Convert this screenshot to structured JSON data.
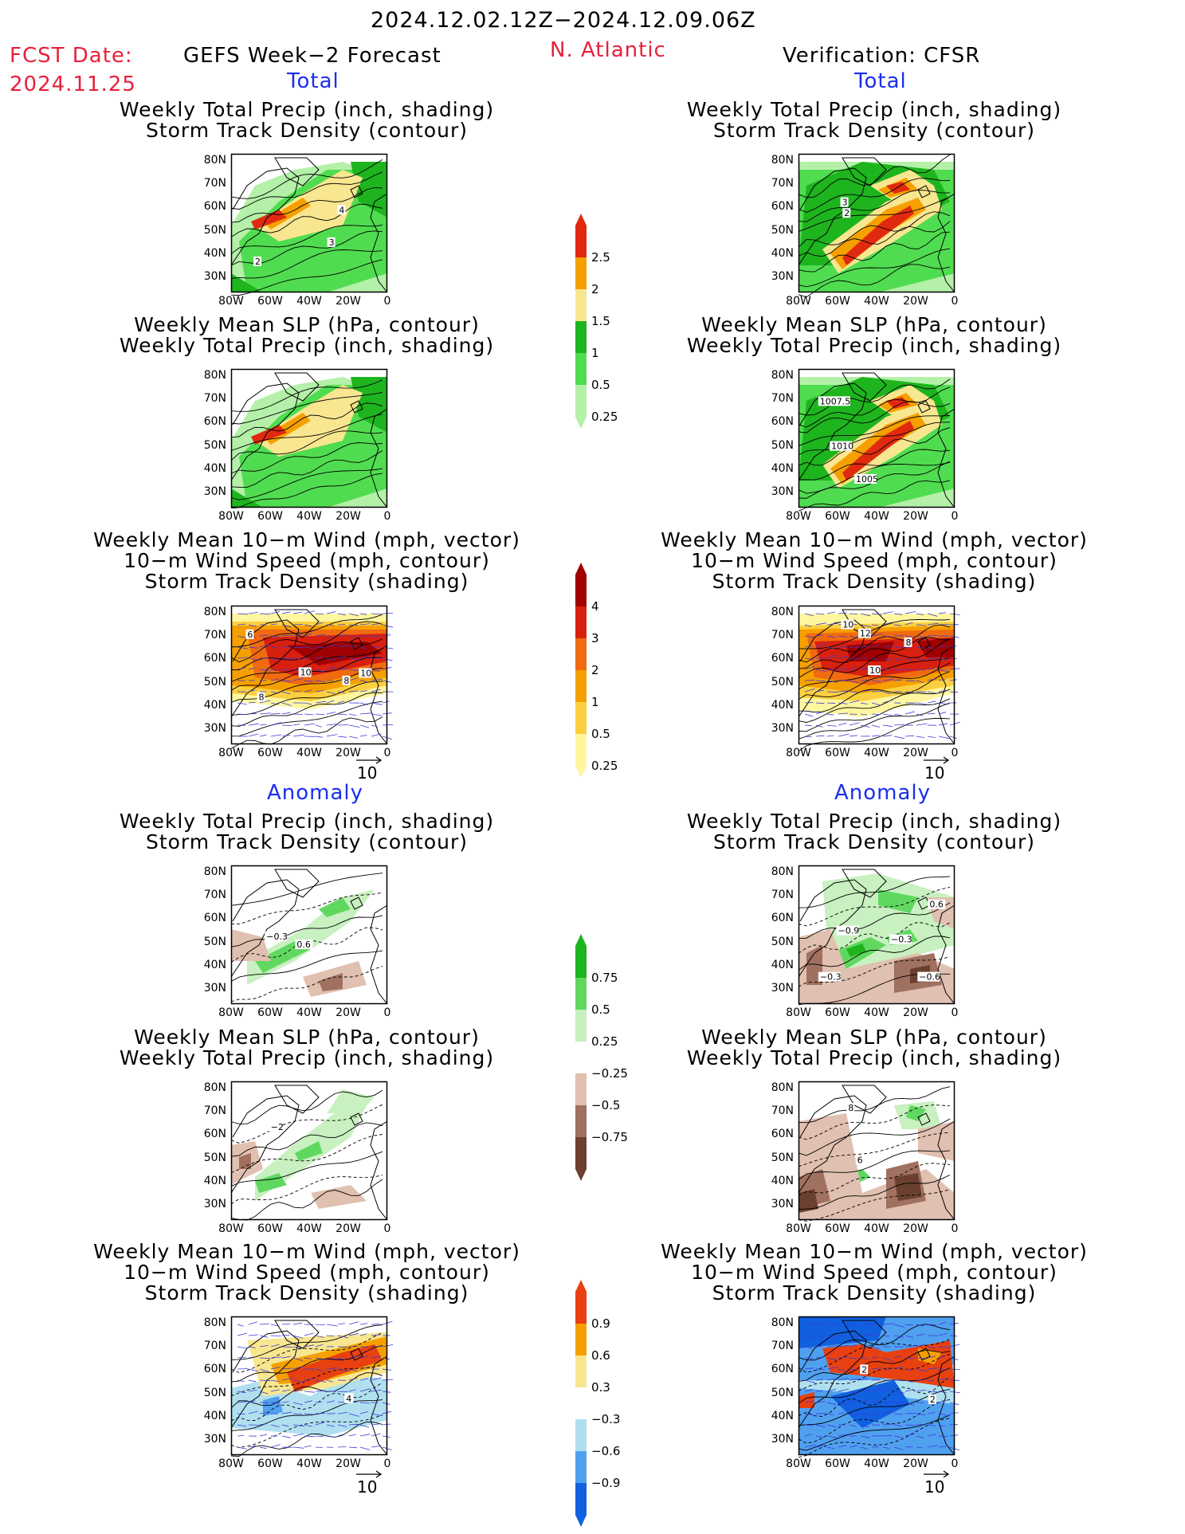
{
  "header": {
    "period": "2024.12.02.12Z−2024.12.09.06Z",
    "fcst_label": "FCST Date:",
    "fcst_date": "2024.11.25",
    "left_title": "GEFS Week−2 Forecast",
    "region": "N. Atlantic",
    "right_title": "Verification: CFSR"
  },
  "sections": {
    "total": "Total",
    "anomaly": "Anomaly"
  },
  "panel_titles": {
    "precip_track": [
      "Weekly Total Precip (inch, shading)",
      "Storm Track Density (contour)"
    ],
    "slp_precip": [
      "Weekly Mean SLP (hPa, contour)",
      "Weekly Total Precip (inch, shading)"
    ],
    "wind_track": [
      "Weekly Mean 10−m Wind (mph, vector)",
      "10−m Wind Speed (mph, contour)",
      "Storm Track Density (shading)"
    ]
  },
  "axes": {
    "lat_ticks": [
      "80N",
      "70N",
      "60N",
      "50N",
      "40N",
      "30N"
    ],
    "lon_ticks": [
      "80W",
      "60W",
      "40W",
      "20W",
      "0"
    ]
  },
  "vector_ref": "10",
  "colorbars": {
    "precip_total": {
      "levels": [
        "0.25",
        "0.5",
        "1",
        "1.5",
        "2",
        "2.5"
      ],
      "colors": [
        "#b4f0a8",
        "#50dc50",
        "#1eb41e",
        "#f8e690",
        "#f5a000",
        "#e02a10"
      ]
    },
    "track_total": {
      "levels": [
        "0.25",
        "0.5",
        "1",
        "2",
        "3",
        "4"
      ],
      "colors": [
        "#fff6a0",
        "#fbd040",
        "#f5a000",
        "#f06a10",
        "#d82010",
        "#a00000"
      ]
    },
    "precip_anom": {
      "levels": [
        "−0.75",
        "−0.5",
        "−0.25",
        "0.25",
        "0.5",
        "0.75"
      ],
      "colors": [
        "#6b4030",
        "#a07060",
        "#e0c0b0",
        "#ffffff",
        "#c8f0c0",
        "#60d860",
        "#1eb41e"
      ]
    },
    "track_anom": {
      "levels": [
        "−0.9",
        "−0.6",
        "−0.3",
        "0.3",
        "0.6",
        "0.9"
      ],
      "colors": [
        "#1060e0",
        "#50a0f0",
        "#b0e0f0",
        "#ffffff",
        "#f8e690",
        "#f5a000",
        "#e84010"
      ]
    }
  },
  "contour_labels": {
    "f_total_precip": [
      "4",
      "3",
      "2"
    ],
    "v_total_precip": [
      "2",
      "3"
    ],
    "v_total_slp": [
      "1007.5",
      "1010",
      "1005"
    ],
    "f_total_wind": [
      "10",
      "8",
      "8",
      "6",
      "10"
    ],
    "v_total_wind": [
      "8",
      "10",
      "12",
      "10"
    ],
    "f_anom_precip": [
      "−0.3",
      "0.6"
    ],
    "v_anom_precip": [
      "−0.3",
      "0.6",
      "−0.9",
      "−0.6",
      "−0.3"
    ],
    "f_anom_slp": [
      "−2"
    ],
    "v_anom_slp": [
      "6",
      "8"
    ],
    "f_anom_wind": [
      "2",
      "4"
    ],
    "v_anom_wind": [
      "2",
      "2"
    ]
  },
  "chart_data": [
    {
      "type": "heatmap",
      "panel": "GEFS forecast, total",
      "title": [
        "Weekly Total Precip (inch, shading)",
        "Storm Track Density (contour)"
      ],
      "units": "inch",
      "domain": {
        "lon": [
          -80,
          0
        ],
        "lat": [
          25,
          85
        ]
      },
      "colorbar": "precip_total",
      "contour_labels": [
        "4",
        "3",
        "2"
      ]
    },
    {
      "type": "heatmap",
      "panel": "CFSR verification, total",
      "title": [
        "Weekly Total Precip (inch, shading)",
        "Storm Track Density (contour)"
      ],
      "units": "inch",
      "domain": {
        "lon": [
          -80,
          0
        ],
        "lat": [
          25,
          85
        ]
      },
      "colorbar": "precip_total",
      "contour_labels": [
        "2",
        "3"
      ]
    },
    {
      "type": "heatmap",
      "panel": "GEFS forecast, total",
      "title": [
        "Weekly Mean SLP (hPa, contour)",
        "Weekly Total Precip (inch, shading)"
      ],
      "units": "hPa / inch",
      "domain": {
        "lon": [
          -80,
          0
        ],
        "lat": [
          25,
          85
        ]
      },
      "colorbar": "precip_total"
    },
    {
      "type": "heatmap",
      "panel": "CFSR verification, total",
      "title": [
        "Weekly Mean SLP (hPa, contour)",
        "Weekly Total Precip (inch, shading)"
      ],
      "units": "hPa / inch",
      "domain": {
        "lon": [
          -80,
          0
        ],
        "lat": [
          25,
          85
        ]
      },
      "colorbar": "precip_total",
      "contour_labels": [
        "1007.5",
        "1010",
        "1005"
      ]
    },
    {
      "type": "heatmap",
      "panel": "GEFS forecast, total",
      "title": [
        "Weekly Mean 10-m Wind (mph, vector)",
        "10-m Wind Speed (mph, contour)",
        "Storm Track Density (shading)"
      ],
      "domain": {
        "lon": [
          -80,
          0
        ],
        "lat": [
          25,
          85
        ]
      },
      "colorbar": "track_total",
      "vector_reference": 10
    },
    {
      "type": "heatmap",
      "panel": "CFSR verification, total",
      "title": [
        "Weekly Mean 10-m Wind (mph, vector)",
        "10-m Wind Speed (mph, contour)",
        "Storm Track Density (shading)"
      ],
      "domain": {
        "lon": [
          -80,
          0
        ],
        "lat": [
          25,
          85
        ]
      },
      "colorbar": "track_total",
      "vector_reference": 10
    },
    {
      "type": "heatmap",
      "panel": "GEFS forecast, anomaly",
      "title": [
        "Weekly Total Precip (inch, shading)",
        "Storm Track Density (contour)"
      ],
      "domain": {
        "lon": [
          -80,
          0
        ],
        "lat": [
          25,
          85
        ]
      },
      "colorbar": "precip_anom"
    },
    {
      "type": "heatmap",
      "panel": "CFSR verification, anomaly",
      "title": [
        "Weekly Total Precip (inch, shading)",
        "Storm Track Density (contour)"
      ],
      "domain": {
        "lon": [
          -80,
          0
        ],
        "lat": [
          25,
          85
        ]
      },
      "colorbar": "precip_anom"
    },
    {
      "type": "heatmap",
      "panel": "GEFS forecast, anomaly",
      "title": [
        "Weekly Mean SLP (hPa, contour)",
        "Weekly Total Precip (inch, shading)"
      ],
      "domain": {
        "lon": [
          -80,
          0
        ],
        "lat": [
          25,
          85
        ]
      },
      "colorbar": "precip_anom"
    },
    {
      "type": "heatmap",
      "panel": "CFSR verification, anomaly",
      "title": [
        "Weekly Mean SLP (hPa, contour)",
        "Weekly Total Precip (inch, shading)"
      ],
      "domain": {
        "lon": [
          -80,
          0
        ],
        "lat": [
          25,
          85
        ]
      },
      "colorbar": "precip_anom"
    },
    {
      "type": "heatmap",
      "panel": "GEFS forecast, anomaly",
      "title": [
        "Weekly Mean 10-m Wind (mph, vector)",
        "10-m Wind Speed (mph, contour)",
        "Storm Track Density (shading)"
      ],
      "domain": {
        "lon": [
          -80,
          0
        ],
        "lat": [
          25,
          85
        ]
      },
      "colorbar": "track_anom",
      "vector_reference": 10
    },
    {
      "type": "heatmap",
      "panel": "CFSR verification, anomaly",
      "title": [
        "Weekly Mean 10-m Wind (mph, vector)",
        "10-m Wind Speed (mph, contour)",
        "Storm Track Density (shading)"
      ],
      "domain": {
        "lon": [
          -80,
          0
        ],
        "lat": [
          25,
          85
        ]
      },
      "colorbar": "track_anom",
      "vector_reference": 10
    }
  ]
}
